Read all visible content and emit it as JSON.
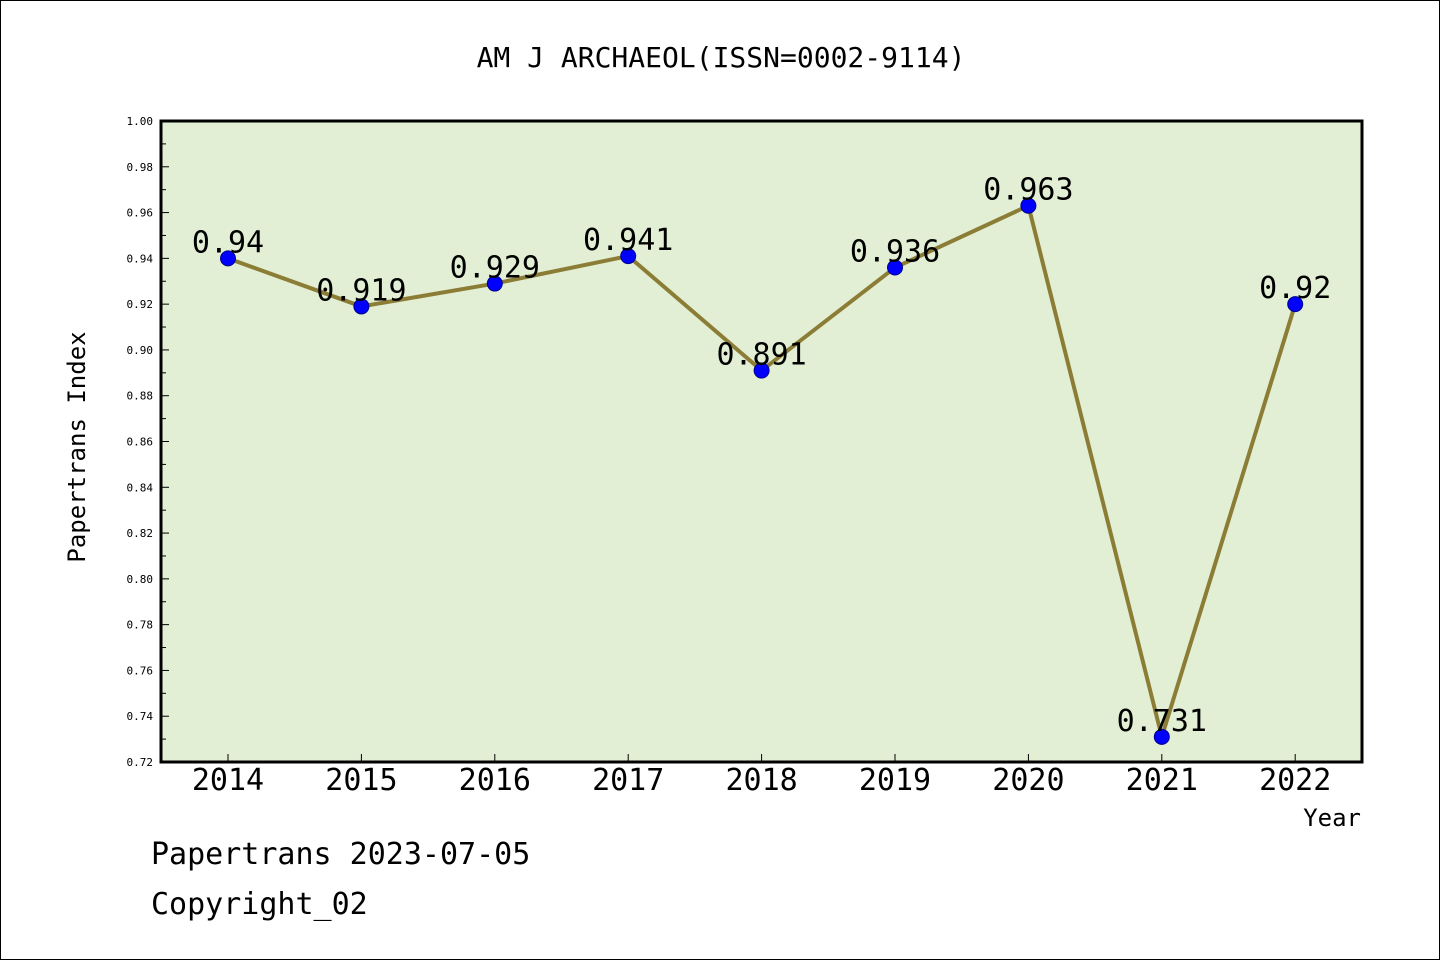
{
  "chart_data": {
    "type": "line",
    "title": "AM J ARCHAEOL(ISSN=0002-9114)",
    "xlabel": "Year",
    "ylabel": "Papertrans Index",
    "ylim": [
      0.72,
      1.0
    ],
    "yticks": [
      "0.72",
      "0.74",
      "0.76",
      "0.78",
      "0.80",
      "0.82",
      "0.84",
      "0.86",
      "0.88",
      "0.90",
      "0.92",
      "0.94",
      "0.96",
      "0.98",
      "1.00"
    ],
    "categories": [
      "2014",
      "2015",
      "2016",
      "2017",
      "2018",
      "2019",
      "2020",
      "2021",
      "2022"
    ],
    "series": [
      {
        "values": [
          0.94,
          0.919,
          0.929,
          0.941,
          0.891,
          0.936,
          0.963,
          0.731,
          0.92
        ],
        "labels": [
          "0.94",
          "0.919",
          "0.929",
          "0.941",
          "0.891",
          "0.936",
          "0.963",
          "0.731",
          "0.92"
        ]
      }
    ],
    "grid": false,
    "colors": {
      "plot_background": "#e2efd5",
      "line": "#8b7d35",
      "marker": "#0000ff"
    }
  },
  "footer": {
    "line1": "Papertrans 2023-07-05",
    "line2": "Copyright_02"
  }
}
